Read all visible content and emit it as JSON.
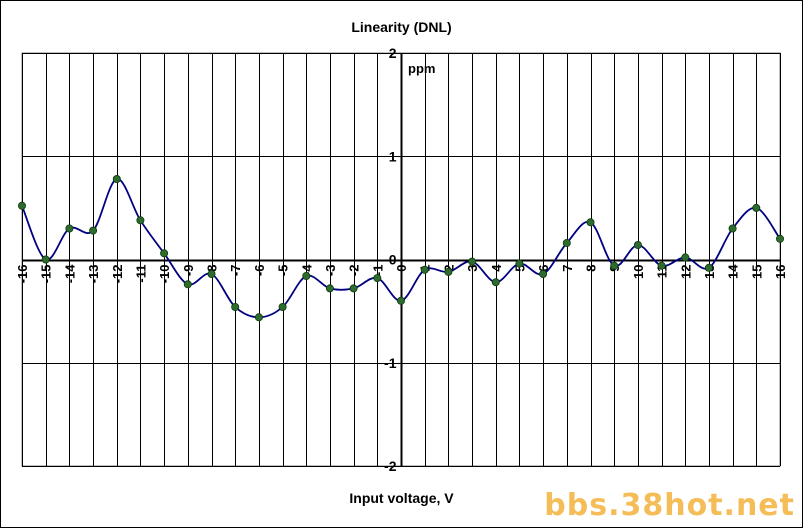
{
  "chart_data": {
    "type": "line",
    "title": "Linearity (DNL)",
    "xlabel": "Input voltage, V",
    "ylabel": "ppm",
    "xlim": [
      -16,
      16
    ],
    "ylim": [
      -2,
      2
    ],
    "x_ticks": [
      -16,
      -15,
      -14,
      -13,
      -12,
      -11,
      -10,
      -9,
      -8,
      -7,
      -6,
      -5,
      -4,
      -3,
      -2,
      -1,
      0,
      1,
      2,
      3,
      4,
      5,
      6,
      7,
      8,
      9,
      10,
      11,
      12,
      13,
      14,
      15,
      16
    ],
    "y_ticks": [
      -2,
      -1,
      0,
      1,
      2
    ],
    "grid": true,
    "series": [
      {
        "name": "",
        "color": "#000080",
        "marker_color": "#2e6b2e",
        "x": [
          -16,
          -15,
          -14,
          -13,
          -12,
          -11,
          -10,
          -9,
          -8,
          -7,
          -6,
          -5,
          -4,
          -3,
          -2,
          -1,
          0,
          1,
          2,
          3,
          4,
          5,
          6,
          7,
          8,
          9,
          10,
          11,
          12,
          13,
          14,
          15,
          16
        ],
        "y": [
          0.52,
          0.0,
          0.3,
          0.28,
          0.78,
          0.38,
          0.06,
          -0.24,
          -0.14,
          -0.46,
          -0.56,
          -0.46,
          -0.16,
          -0.28,
          -0.28,
          -0.18,
          -0.4,
          -0.1,
          -0.12,
          -0.02,
          -0.22,
          -0.04,
          -0.14,
          0.16,
          0.36,
          -0.06,
          0.14,
          -0.06,
          0.02,
          -0.08,
          0.3,
          0.5,
          0.2
        ]
      }
    ]
  },
  "watermark": "bbs.38hot.net"
}
